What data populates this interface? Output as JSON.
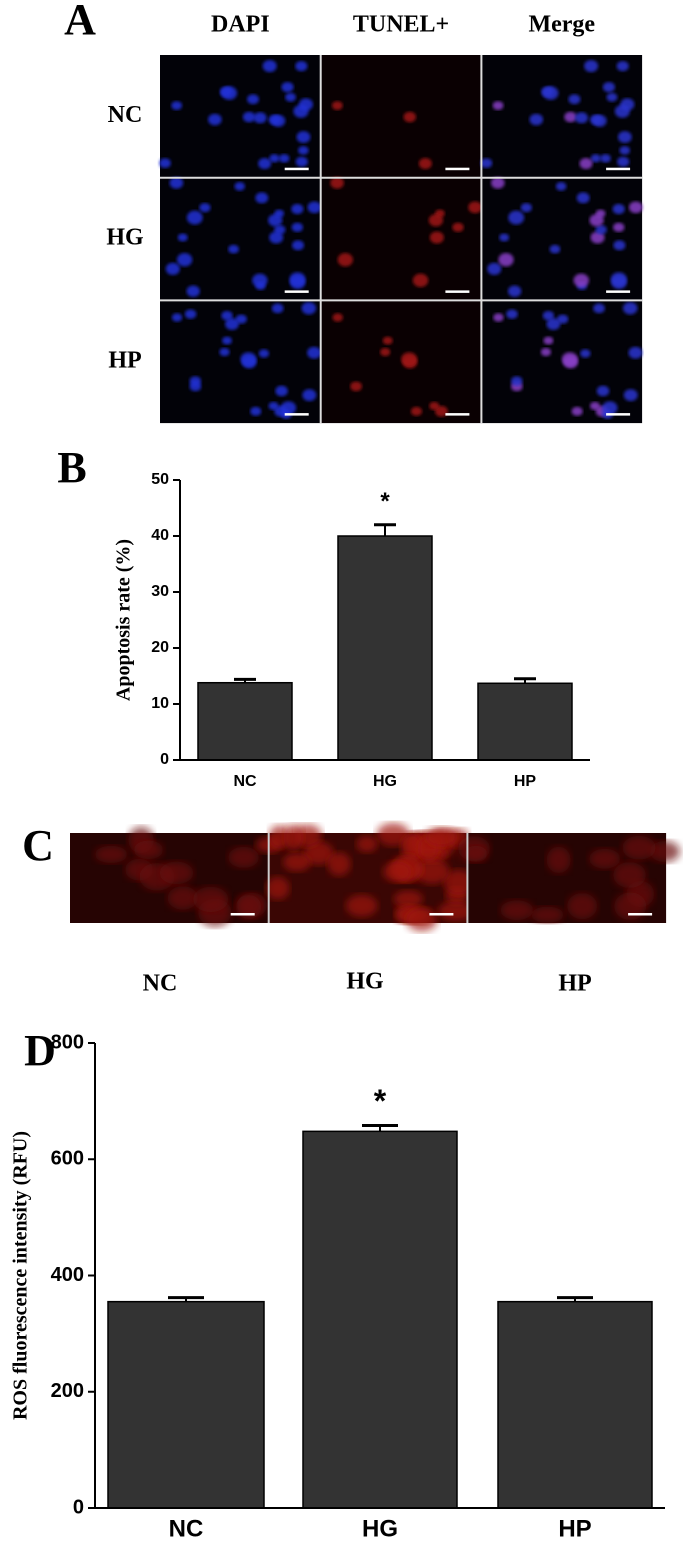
{
  "panel_labels": [
    "A",
    "B",
    "C",
    "D"
  ],
  "panel_a": {
    "columns": [
      "DAPI",
      "TUNEL+",
      "Merge"
    ],
    "rows": [
      "NC",
      "HG",
      "HP"
    ]
  },
  "panel_c": {
    "columns": [
      "NC",
      "HG",
      "HP"
    ]
  },
  "chart_data": [
    {
      "type": "bar",
      "ylabel": "Apoptosis rate (%)",
      "categories": [
        "NC",
        "HG",
        "HP"
      ],
      "values": [
        13.8,
        40,
        13.7
      ],
      "errors": [
        0.6,
        2,
        0.8
      ],
      "significance": [
        null,
        "*",
        null
      ],
      "color": "#333333",
      "ylim": [
        0,
        50
      ],
      "yticks": [
        0,
        10,
        20,
        30,
        40,
        50
      ]
    },
    {
      "type": "bar",
      "ylabel": "ROS fluorescence intensity (RFU)",
      "categories": [
        "NC",
        "HG",
        "HP"
      ],
      "values": [
        355,
        648,
        355
      ],
      "errors": [
        7,
        10,
        7
      ],
      "significance": [
        null,
        "*",
        null
      ],
      "color": "#333333",
      "ylim": [
        0,
        800
      ],
      "yticks": [
        0,
        200,
        400,
        600,
        800
      ]
    }
  ]
}
